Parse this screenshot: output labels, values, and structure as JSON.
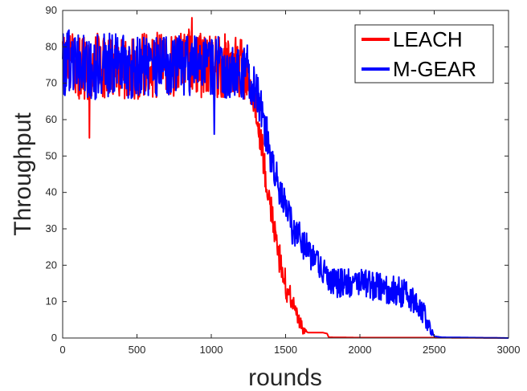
{
  "chart_data": {
    "type": "line",
    "title": "",
    "xlabel": "rounds",
    "ylabel": "Throughput",
    "xlim": [
      0,
      3000
    ],
    "ylim": [
      0,
      90
    ],
    "xticks": [
      0,
      500,
      1000,
      1500,
      2000,
      2500,
      3000
    ],
    "yticks": [
      0,
      10,
      20,
      30,
      40,
      50,
      60,
      70,
      80,
      90
    ],
    "grid": false,
    "legend_position": "top-right",
    "series": [
      {
        "name": "LEACH",
        "color": "#ff0000",
        "points": [
          [
            0,
            76
          ],
          [
            50,
            75
          ],
          [
            100,
            74
          ],
          [
            150,
            74
          ],
          [
            200,
            75
          ],
          [
            250,
            75
          ],
          [
            300,
            74
          ],
          [
            350,
            75
          ],
          [
            400,
            75
          ],
          [
            450,
            74
          ],
          [
            500,
            74
          ],
          [
            550,
            75
          ],
          [
            600,
            75
          ],
          [
            650,
            75
          ],
          [
            700,
            75
          ],
          [
            750,
            75
          ],
          [
            800,
            75
          ],
          [
            850,
            76
          ],
          [
            900,
            75
          ],
          [
            950,
            75
          ],
          [
            1000,
            75
          ],
          [
            1050,
            75
          ],
          [
            1100,
            75
          ],
          [
            1150,
            75
          ],
          [
            1200,
            74
          ],
          [
            1250,
            72
          ],
          [
            1280,
            68
          ],
          [
            1300,
            62
          ],
          [
            1320,
            57
          ],
          [
            1340,
            52
          ],
          [
            1360,
            47
          ],
          [
            1380,
            42
          ],
          [
            1400,
            36
          ],
          [
            1420,
            30
          ],
          [
            1440,
            25
          ],
          [
            1460,
            22
          ],
          [
            1480,
            18
          ],
          [
            1500,
            15
          ],
          [
            1520,
            12
          ],
          [
            1540,
            10
          ],
          [
            1560,
            8
          ],
          [
            1580,
            6
          ],
          [
            1600,
            4
          ],
          [
            1620,
            2
          ],
          [
            1650,
            1.5
          ],
          [
            1700,
            1.5
          ],
          [
            1750,
            1.5
          ],
          [
            1780,
            1.2
          ],
          [
            1790,
            0.2
          ],
          [
            2000,
            0.1
          ],
          [
            2500,
            0.1
          ],
          [
            3000,
            0
          ]
        ],
        "noise": [
          [
            0,
            9
          ],
          [
            1200,
            9
          ],
          [
            1250,
            6
          ],
          [
            1300,
            5
          ],
          [
            1400,
            5
          ],
          [
            1500,
            4
          ],
          [
            1600,
            2
          ],
          [
            1650,
            0
          ],
          [
            3000,
            0
          ]
        ],
        "outliers": [
          [
            180,
            55
          ],
          [
            870,
            88
          ]
        ]
      },
      {
        "name": "M-GEAR",
        "color": "#0000ff",
        "points": [
          [
            0,
            75
          ],
          [
            50,
            76
          ],
          [
            100,
            75
          ],
          [
            150,
            75
          ],
          [
            200,
            74
          ],
          [
            250,
            75
          ],
          [
            300,
            75
          ],
          [
            350,
            75
          ],
          [
            400,
            75
          ],
          [
            450,
            74
          ],
          [
            500,
            74
          ],
          [
            550,
            75
          ],
          [
            600,
            75
          ],
          [
            650,
            75
          ],
          [
            700,
            75
          ],
          [
            750,
            75
          ],
          [
            800,
            75
          ],
          [
            850,
            75
          ],
          [
            900,
            75
          ],
          [
            950,
            75
          ],
          [
            1000,
            75
          ],
          [
            1050,
            75
          ],
          [
            1100,
            74
          ],
          [
            1150,
            74
          ],
          [
            1200,
            74
          ],
          [
            1250,
            73
          ],
          [
            1300,
            69
          ],
          [
            1320,
            66
          ],
          [
            1340,
            62
          ],
          [
            1360,
            58
          ],
          [
            1380,
            54
          ],
          [
            1400,
            50
          ],
          [
            1420,
            46
          ],
          [
            1440,
            43
          ],
          [
            1460,
            40
          ],
          [
            1480,
            38
          ],
          [
            1500,
            35
          ],
          [
            1550,
            30
          ],
          [
            1600,
            27
          ],
          [
            1650,
            24
          ],
          [
            1700,
            21
          ],
          [
            1750,
            18
          ],
          [
            1800,
            16
          ],
          [
            1850,
            15
          ],
          [
            1900,
            15
          ],
          [
            1950,
            15
          ],
          [
            2000,
            15
          ],
          [
            2050,
            15
          ],
          [
            2100,
            14
          ],
          [
            2150,
            14
          ],
          [
            2200,
            13
          ],
          [
            2250,
            13
          ],
          [
            2300,
            12
          ],
          [
            2350,
            11
          ],
          [
            2400,
            9
          ],
          [
            2450,
            5
          ],
          [
            2480,
            2
          ],
          [
            2500,
            0.5
          ],
          [
            2550,
            0.2
          ],
          [
            3000,
            0
          ]
        ],
        "noise": [
          [
            0,
            9
          ],
          [
            1250,
            8
          ],
          [
            1300,
            6
          ],
          [
            1500,
            5
          ],
          [
            1700,
            4
          ],
          [
            2300,
            4
          ],
          [
            2450,
            3
          ],
          [
            2500,
            0
          ],
          [
            3000,
            0
          ]
        ],
        "outliers": [
          [
            1020,
            56
          ]
        ]
      }
    ]
  }
}
